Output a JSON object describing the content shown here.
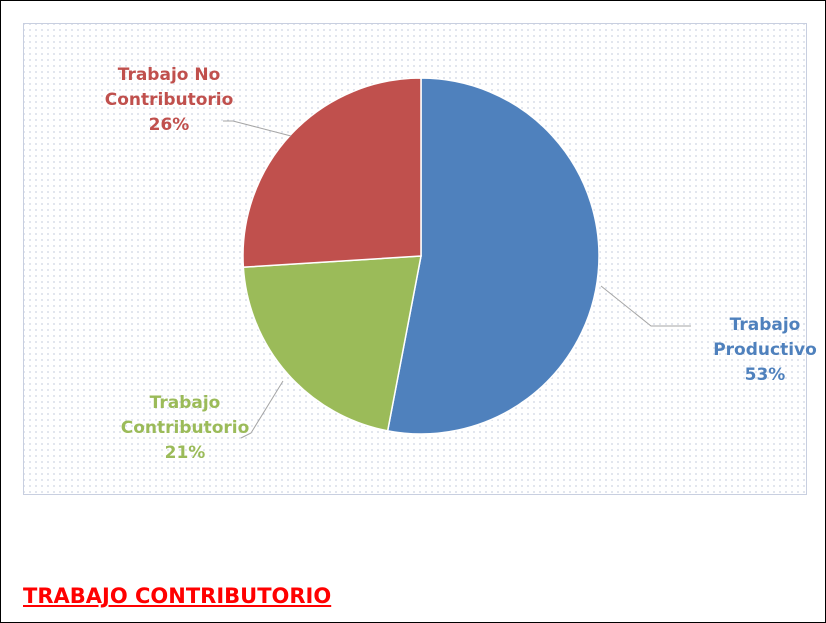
{
  "chart_data": {
    "type": "pie",
    "categories": [
      "Trabajo Productivo",
      "Trabajo Contributorio",
      "Trabajo No Contributorio"
    ],
    "values": [
      53,
      21,
      26
    ],
    "value_labels": [
      "53%",
      "21%",
      "26%"
    ],
    "colors": [
      "#4f81bd",
      "#9bbb59",
      "#c0504d"
    ]
  },
  "heading": "TRABAJO CONTRIBUTORIO"
}
